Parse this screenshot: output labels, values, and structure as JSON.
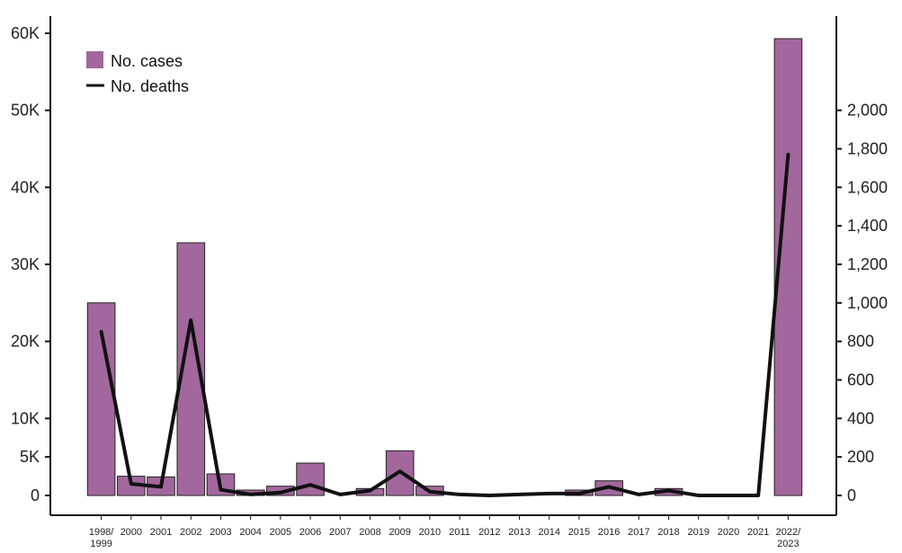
{
  "chart_data": {
    "type": "bar",
    "categories": [
      "1998/\n1999",
      "2000",
      "2001",
      "2002",
      "2003",
      "2004",
      "2005",
      "2006",
      "2007",
      "2008",
      "2009",
      "2010",
      "2011",
      "2012",
      "2013",
      "2014",
      "2015",
      "2016",
      "2017",
      "2018",
      "2019",
      "2020",
      "2021",
      "2022/\n2023"
    ],
    "series": [
      {
        "name": "No. cases",
        "type": "bar",
        "axis": "left",
        "color": "#a2679d",
        "values": [
          25000,
          2500,
          2400,
          32800,
          2800,
          700,
          1200,
          4200,
          0,
          900,
          5800,
          1200,
          0,
          0,
          0,
          0,
          700,
          1900,
          0,
          900,
          0,
          0,
          0,
          59300
        ]
      },
      {
        "name": "No. deaths",
        "type": "line",
        "axis": "right",
        "color": "#111111",
        "values": [
          850,
          60,
          45,
          910,
          30,
          5,
          15,
          55,
          5,
          25,
          125,
          20,
          5,
          0,
          5,
          10,
          10,
          45,
          5,
          25,
          0,
          0,
          0,
          1770
        ]
      }
    ],
    "y_left": {
      "ylim": [
        0,
        60000
      ],
      "ticks": [
        0,
        5000,
        10000,
        20000,
        30000,
        40000,
        50000,
        60000
      ],
      "tick_labels": [
        "0",
        "5K",
        "10K",
        "20K",
        "30K",
        "40K",
        "50K",
        "60K"
      ]
    },
    "y_right": {
      "ylim": [
        0,
        2400
      ],
      "ticks": [
        0,
        200,
        400,
        600,
        800,
        1000,
        1200,
        1400,
        1600,
        1800,
        2000
      ],
      "tick_labels": [
        "0",
        "200",
        "400",
        "600",
        "800",
        "1,000",
        "1,200",
        "1,400",
        "1,600",
        "1,800",
        "2,000"
      ]
    },
    "legend_position": "top-left",
    "grid": false
  }
}
